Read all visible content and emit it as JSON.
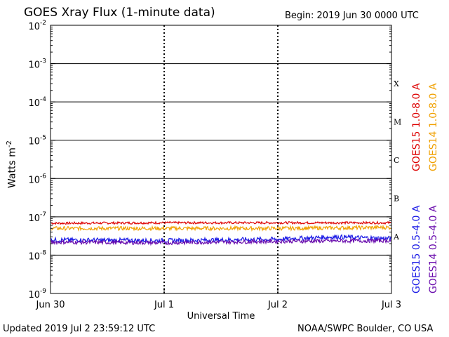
{
  "header": {
    "title": "GOES Xray Flux (1-minute data)",
    "begin": "Begin:  2019 Jun 30 0000 UTC"
  },
  "footer": {
    "updated": "Updated 2019 Jul  2 23:59:12 UTC",
    "credit": "NOAA/SWPC Boulder, CO USA"
  },
  "colors": {
    "goes15_long": "#dd0000",
    "goes14_long": "#f0a000",
    "goes15_short": "#1a1ae6",
    "goes14_short": "#6a0dad"
  },
  "chart_data": {
    "type": "line",
    "title": "GOES Xray Flux (1-minute data)",
    "xlabel": "Universal Time",
    "ylabel": "Watts m",
    "ylabel_sup": "-2",
    "yscale": "log",
    "ylim": [
      1e-09,
      0.01
    ],
    "xlim": [
      "2019-06-30 00:00",
      "2019-07-03 00:00"
    ],
    "x_ticks": [
      "Jun 30",
      "Jul 1",
      "Jul 2",
      "Jul 3"
    ],
    "y_ticks": [
      {
        "base": "10",
        "exp": "-9"
      },
      {
        "base": "10",
        "exp": "-8"
      },
      {
        "base": "10",
        "exp": "-7"
      },
      {
        "base": "10",
        "exp": "-6"
      },
      {
        "base": "10",
        "exp": "-5"
      },
      {
        "base": "10",
        "exp": "-4"
      },
      {
        "base": "10",
        "exp": "-3"
      },
      {
        "base": "10",
        "exp": "-2"
      }
    ],
    "flare_classes": [
      "A",
      "B",
      "C",
      "M",
      "X"
    ],
    "series": [
      {
        "name": "GOES15 1.0-8.0 A",
        "values_approx": 7e-08,
        "points": [
          [
            "2019-06-30",
            6.8e-08
          ],
          [
            "2019-07-01",
            7e-08
          ],
          [
            "2019-07-02",
            7e-08
          ],
          [
            "2019-07-03",
            7e-08
          ]
        ]
      },
      {
        "name": "GOES14 1.0-8.0 A",
        "values_approx": 5e-08,
        "points": [
          [
            "2019-06-30",
            5e-08
          ],
          [
            "2019-07-01",
            5e-08
          ],
          [
            "2019-07-02",
            5e-08
          ],
          [
            "2019-07-03",
            5.3e-08
          ]
        ]
      },
      {
        "name": "GOES15 0.5-4.0 A",
        "values_approx": 2.5e-08,
        "points": [
          [
            "2019-06-30",
            2.5e-08
          ],
          [
            "2019-07-01",
            2.4e-08
          ],
          [
            "2019-07-02",
            2.6e-08
          ],
          [
            "2019-07-02 12:00",
            3e-08
          ],
          [
            "2019-07-03",
            2.7e-08
          ]
        ]
      },
      {
        "name": "GOES14 0.5-4.0 A",
        "values_approx": 2.2e-08,
        "points": [
          [
            "2019-06-30",
            2.2e-08
          ],
          [
            "2019-07-01",
            2.1e-08
          ],
          [
            "2019-07-02",
            2.3e-08
          ],
          [
            "2019-07-03",
            2.4e-08
          ]
        ]
      }
    ],
    "legend": [
      "GOES15 1.0-8.0 A",
      "GOES14 1.0-8.0 A",
      "GOES15 0.5-4.0 A",
      "GOES14 0.5-4.0 A"
    ],
    "legend_placement": "right",
    "grid": true
  }
}
